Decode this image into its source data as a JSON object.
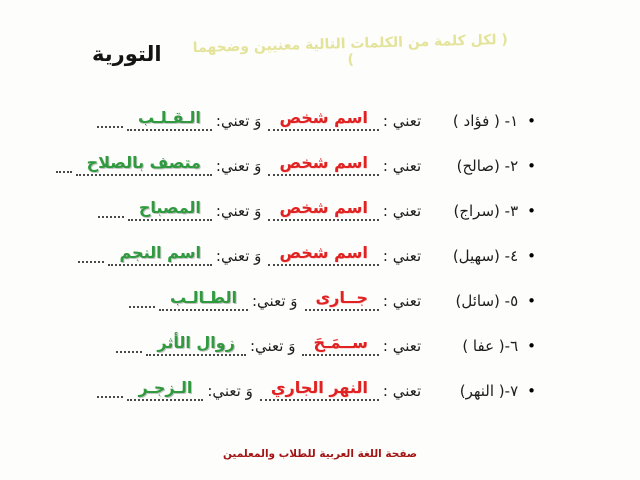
{
  "page": {
    "title": "التورية",
    "header_note": "( لكل كلمة من الكلمات التالية معنيين وضحهما )",
    "footer": "صفحة اللغة العربية للطلاب والمعلمين"
  },
  "labels": {
    "bullet": "•",
    "means": "تعني :",
    "and_means": "وَ تعني:"
  },
  "colors": {
    "answer_red": "#e02222",
    "answer_green": "#2f9a3e",
    "footer_red": "#a31515",
    "note_yellow": "#e3e39a"
  },
  "rows": [
    {
      "item": "١- ( فؤاد )",
      "meaning1": "اسم شخص",
      "meaning2": "الـقـلـب"
    },
    {
      "item": "٢- (صالح)",
      "meaning1": "اسم شخص",
      "meaning2": "متصف بالصلاح"
    },
    {
      "item": "٣- (سراج)",
      "meaning1": "اسم شخص",
      "meaning2": "المصباح"
    },
    {
      "item": "٤- (سهيل)",
      "meaning1": "اسم شخص",
      "meaning2": "اسم النجم"
    },
    {
      "item": "٥- (سائل)",
      "meaning1": "جــارى",
      "meaning2": "الطـالـب"
    },
    {
      "item": "٦-( عفا )",
      "meaning1": "ســمَـحَ",
      "meaning2": "زوال الأثر"
    },
    {
      "item": "٧-( النهر)",
      "meaning1": "النهر الجاري",
      "meaning2": "الـزجـر"
    }
  ]
}
